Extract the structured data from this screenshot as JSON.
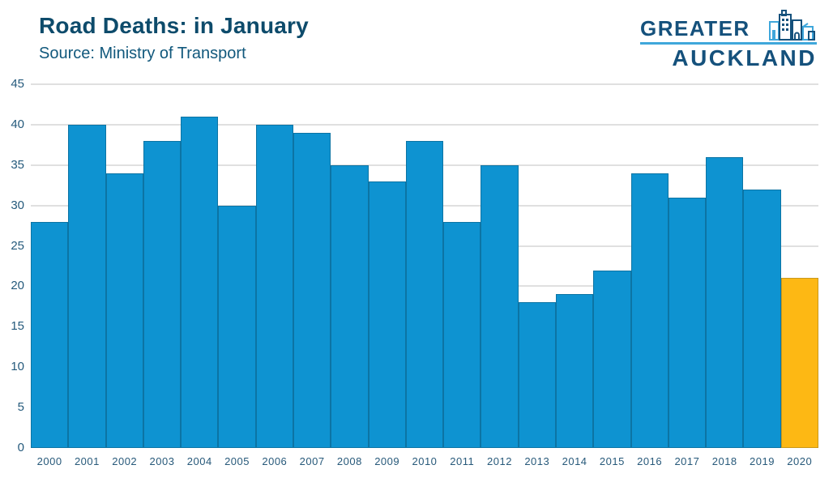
{
  "header": {
    "title": "Road Deaths: in January",
    "source": "Source: Ministry of Transport"
  },
  "logo": {
    "line1": "GREATER",
    "line2": "AUCKLAND",
    "icon": "city-skyline-icon",
    "dark_blue": "#15517c",
    "light_blue": "#3fa7db"
  },
  "colors": {
    "bar_fill": "#0e93d1",
    "bar_border": "#0c74a4",
    "highlight_fill": "#fdb814",
    "highlight_border": "#c9981c",
    "gridline": "#e0e0e0",
    "axis_text": "#255a7c",
    "title_text": "#0d4b6b"
  },
  "chart_data": {
    "type": "bar",
    "title": "Road Deaths: in January",
    "subtitle": "Source: Ministry of Transport",
    "categories": [
      "2000",
      "2001",
      "2002",
      "2003",
      "2004",
      "2005",
      "2006",
      "2007",
      "2008",
      "2009",
      "2010",
      "2011",
      "2012",
      "2013",
      "2014",
      "2015",
      "2016",
      "2017",
      "2018",
      "2019",
      "2020"
    ],
    "values": [
      28,
      40,
      34,
      38,
      41,
      30,
      40,
      39,
      35,
      33,
      38,
      28,
      35,
      18,
      19,
      22,
      34,
      31,
      36,
      32,
      21
    ],
    "highlight_index": 20,
    "highlight_note": "2020 bar shown in yellow, all others blue",
    "xlabel": "",
    "ylabel": "",
    "ylim": [
      0,
      45
    ],
    "yticks": [
      0,
      5,
      10,
      15,
      20,
      25,
      30,
      35,
      40,
      45
    ],
    "grid": "horizontal",
    "legend": "none"
  }
}
